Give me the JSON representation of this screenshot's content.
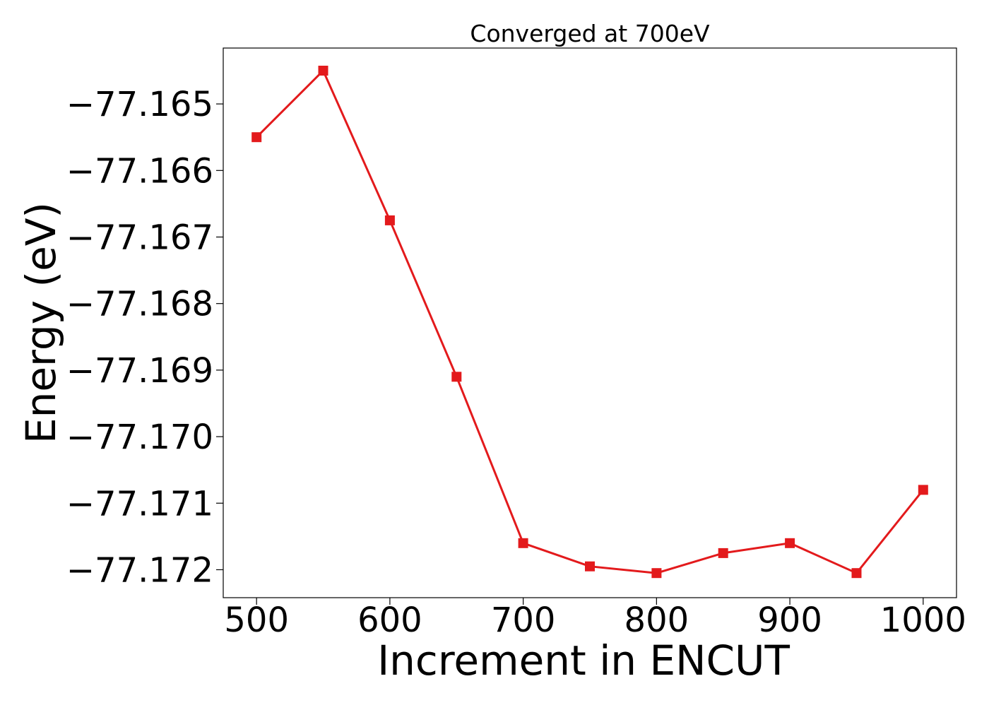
{
  "chart_data": {
    "type": "line",
    "title": "Converged at 700eV",
    "xlabel": "Increment in ENCUT",
    "ylabel": "Energy (eV)",
    "x": [
      500,
      550,
      600,
      650,
      700,
      750,
      800,
      850,
      900,
      950,
      1000
    ],
    "series": [
      {
        "values": [
          -77.1655,
          -77.1645,
          -77.16675,
          -77.1691,
          -77.1716,
          -77.17195,
          -77.17205,
          -77.17175,
          -77.1716,
          -77.17205,
          -77.1708
        ],
        "color": "#e31a1c",
        "marker": "square"
      }
    ],
    "xlim": [
      475,
      1025
    ],
    "ylim": [
      -77.17242,
      -77.16416
    ],
    "xticks": [
      500,
      600,
      700,
      800,
      900,
      1000
    ],
    "xtick_labels": [
      "500",
      "600",
      "700",
      "800",
      "900",
      "1000"
    ],
    "yticks": [
      -77.165,
      -77.166,
      -77.167,
      -77.168,
      -77.169,
      -77.17,
      -77.171,
      -77.172
    ],
    "ytick_labels": [
      "−77.165",
      "−77.166",
      "−77.167",
      "−77.168",
      "−77.169",
      "−77.170",
      "−77.171",
      "−77.172"
    ],
    "grid": false,
    "legend": false
  }
}
